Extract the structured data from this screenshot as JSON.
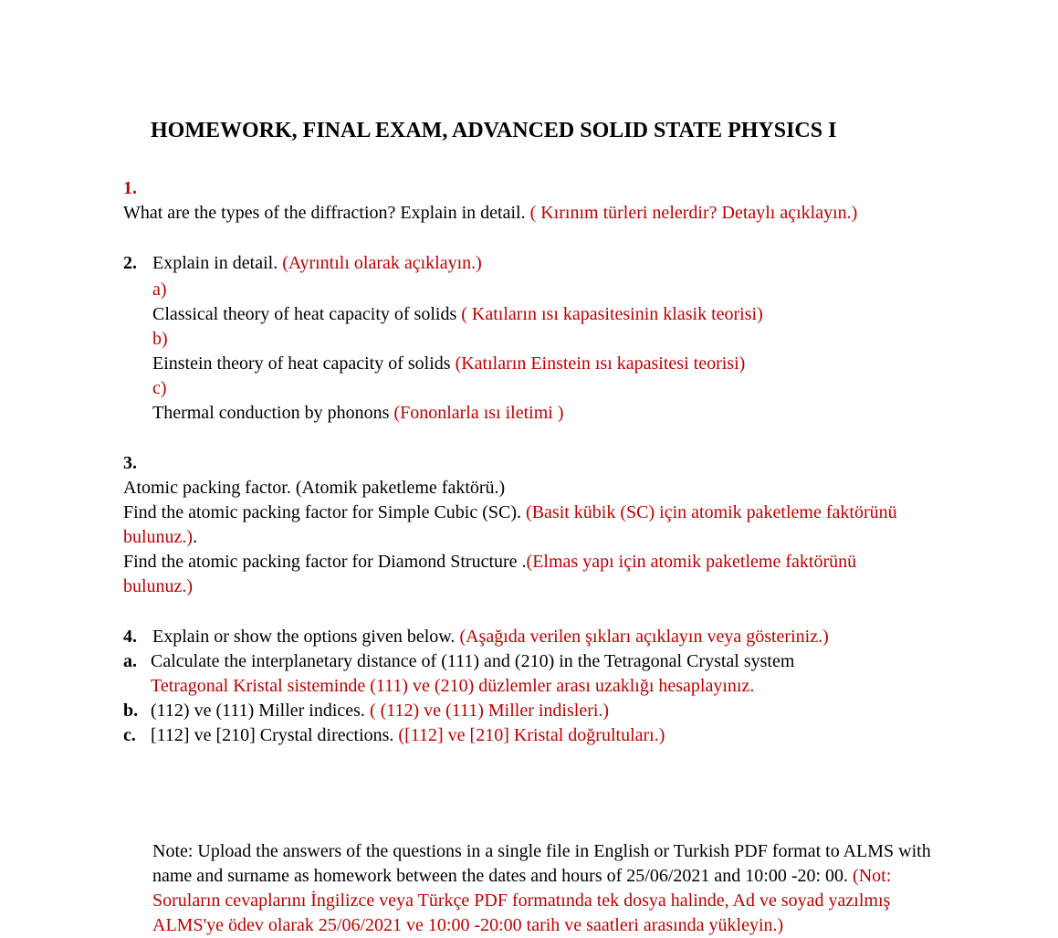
{
  "colors": {
    "black": "#000000",
    "red": "#c00000",
    "background": "#ffffff"
  },
  "typography": {
    "font_family": "Times New Roman",
    "title_fontsize": 24,
    "body_fontsize": 20,
    "title_weight": "bold"
  },
  "title": "HOMEWORK, FINAL EXAM, ADVANCED SOLID STATE PHYSICS I",
  "q1": {
    "num": "1.",
    "text_black": "What are the types of the diffraction?  Explain in detail. ",
    "text_red": "( Kırınım türleri nelerdir? Detaylı açıklayın.)"
  },
  "q2": {
    "num": "2.",
    "intro_black": " Explain in detail. ",
    "intro_red": "(Ayrıntılı olarak açıklayın.)",
    "a_label": "a)",
    "a_black": "Classical theory of heat capacity of solids ",
    "a_red": "( Katıların ısı kapasitesinin klasik teorisi)",
    "b_label": "b)",
    "b_black": "Einstein theory of heat capacity of solids ",
    "b_red": "(Katıların Einstein ısı kapasitesi teorisi)",
    "c_label": "c)",
    "c_black": "Thermal conduction by phonons ",
    "c_red": "(Fononlarla ısı iletimi )"
  },
  "q3": {
    "num": "3.",
    "l1_black": "Atomic packing factor. ",
    "l1_paren": "(Atomik paketleme faktörü.)",
    "l2_black": "Find the  atomic packing factor for Simple Cubic (SC). ",
    "l2_red": "(Basit kübik (SC) için atomik paketleme faktörünü bulunuz.)",
    "l2_dot": ".",
    "l3_black": "Find the atomic packing factor for Diamond Structure .",
    "l3_red": "(Elmas yapı için atomik paketleme faktörünü bulunuz.)"
  },
  "q4": {
    "num": "4.",
    "intro_black": "Explain or show the options given below. ",
    "intro_red": "(Aşağıda verilen şıkları açıklayın veya gösteriniz.)",
    "a_label": "a.",
    "a_black": "Calculate the interplanetary distance of (111) and (210) in the Tetragonal Crystal system ",
    "a_red": "Tetragonal Kristal sisteminde  (111) ve  (210) düzlemler arası uzaklığı hesaplayınız.",
    "b_label": "b.",
    "b_black": "(112) ve (111) Miller indices. ",
    "b_red": "( (112) ve (111) Miller indisleri.)",
    "c_label": "c.",
    "c_black": "[112] ve [210] Crystal directions. ",
    "c_red": "([112] ve [210] Kristal doğrultuları.)"
  },
  "note": {
    "black1": "Note: Upload the answers of the questions in a single file in English or Turkish PDF format to ALMS with name and surname as homework between the dates and hours of 25/06/2021 and 10:00 -20: 00. ",
    "red1": "(Not: Soruların cevaplarını İngilizce veya Türkçe PDF formatında tek dosya halinde, Ad ve soyad yazılmış ALMS'ye ödev olarak 25/06/2021 ve 10:00 -20:00 tarih ve  saatleri  arasında yükleyin.)"
  }
}
